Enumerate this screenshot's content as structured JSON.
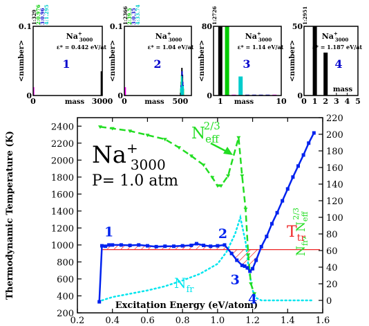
{
  "chart_data": [
    {
      "type": "bar",
      "panel_number": "1",
      "species_base": "Na",
      "species_sup": "+",
      "species_sub": "3000",
      "energy_label": "ε* = 0.442 eV/at",
      "ylabel": "<number>",
      "xlabel": "mass",
      "xlim": [
        0,
        3000
      ],
      "ylim": [
        0,
        0.1
      ],
      "xticks": [
        "0",
        "3000"
      ],
      "yticks": [
        "0",
        "0.1"
      ],
      "top_labels": [
        {
          "text": "1:329",
          "color": "#000000"
        },
        {
          "text": "2:0.976",
          "color": "#00cc00"
        },
        {
          "text": "3:0.96",
          "color": "#0000cc"
        },
        {
          "text": "4:1.295",
          "color": "#00cccc"
        }
      ],
      "series": [
        {
          "color": "#000000",
          "points": [
            [
              2960,
              0.035
            ]
          ]
        },
        {
          "color": "#ff00ff",
          "points": [
            [
              20,
              0.012
            ]
          ]
        }
      ]
    },
    {
      "type": "bar",
      "panel_number": "2",
      "species_base": "Na",
      "species_sup": "+",
      "species_sub": "3000",
      "energy_label": "ε* = 1.04 eV/at",
      "ylabel": "<number>",
      "xlabel": "mass",
      "xlim": [
        0,
        600
      ],
      "ylim": [
        0,
        0.1
      ],
      "xticks": [
        "0",
        "500"
      ],
      "yticks": [
        "0",
        "0.1"
      ],
      "top_labels": [
        {
          "text": "1:2366",
          "color": "#000000"
        },
        {
          "text": "2:39.5",
          "color": "#00cc00"
        },
        {
          "text": "3:0.35",
          "color": "#0000cc"
        },
        {
          "text": "4:33.74",
          "color": "#00cccc"
        }
      ],
      "series": [
        {
          "color": "#000000",
          "points": [
            [
              510,
              0.02
            ],
            [
              515,
              0.04
            ],
            [
              520,
              0.03
            ],
            [
              525,
              0.015
            ]
          ]
        },
        {
          "color": "#00cc00",
          "points": [
            [
              505,
              0.01
            ],
            [
              512,
              0.03
            ],
            [
              518,
              0.025
            ],
            [
              528,
              0.01
            ]
          ]
        },
        {
          "color": "#0000cc",
          "points": [
            [
              508,
              0.015
            ],
            [
              516,
              0.035
            ],
            [
              522,
              0.02
            ]
          ]
        },
        {
          "color": "#00cccc",
          "points": [
            [
              506,
              0.012
            ],
            [
              514,
              0.028
            ],
            [
              526,
              0.014
            ]
          ]
        },
        {
          "color": "#ff00ff",
          "points": [
            [
              8,
              0.012
            ]
          ]
        }
      ]
    },
    {
      "type": "bar",
      "panel_number": "3",
      "species_base": "Na",
      "species_sup": "+",
      "species_sub": "3000",
      "energy_label": "ε* = 1.14 eV/at",
      "ylabel": "<number>",
      "xlabel": "mass",
      "xlim": [
        0,
        10
      ],
      "ylim": [
        0,
        80
      ],
      "xticks": [
        "1",
        "10"
      ],
      "yticks": [
        "0",
        "80"
      ],
      "top_labels": [
        {
          "text": "1:2726",
          "color": "#000000"
        }
      ],
      "series": [
        {
          "color": "#000000",
          "points": [
            [
              1,
              80
            ]
          ]
        },
        {
          "color": "#00cc00",
          "points": [
            [
              2,
              80
            ]
          ]
        },
        {
          "color": "#00cccc",
          "points": [
            [
              4,
              22
            ]
          ]
        },
        {
          "color": "#0000cc",
          "points": [
            [
              5,
              1
            ],
            [
              6,
              1
            ],
            [
              7,
              1
            ],
            [
              8,
              1
            ]
          ]
        },
        {
          "color": "#ff00ff",
          "points": [
            [
              3,
              1
            ],
            [
              9,
              1
            ]
          ]
        }
      ]
    },
    {
      "type": "bar",
      "panel_number": "4",
      "species_base": "Na",
      "species_sup": "+",
      "species_sub": "3000",
      "energy_label": "ε* = 1.187 eV/at",
      "ylabel": "<number>",
      "xlabel": "mass",
      "xlim": [
        0,
        5
      ],
      "ylim": [
        0,
        50
      ],
      "xticks": [
        "0",
        "1",
        "2",
        "3",
        "4",
        "5"
      ],
      "yticks": [
        "0",
        "50"
      ],
      "top_labels": [
        {
          "text": "1:2951",
          "color": "#000000"
        }
      ],
      "series": [
        {
          "color": "#000000",
          "points": [
            [
              1,
              50
            ],
            [
              2,
              31
            ]
          ]
        }
      ]
    },
    {
      "type": "line",
      "title_base": "Na",
      "title_sup": "+",
      "title_sub": "3000",
      "pressure_label": "P= 1.0 atm",
      "xlabel": "Excitation Energy (eV/atom)",
      "ylabel": "Thermodynamic Temperature (K)",
      "ylabel_right": "Nfr, Neff^2/3",
      "xlim": [
        0.2,
        1.6
      ],
      "ylim": [
        200,
        2500
      ],
      "ylim_right": [
        -15,
        220
      ],
      "xticks": [
        "0.2",
        "0.4",
        "0.6",
        "0.8",
        "1.0",
        "1.2",
        "1.4",
        "1.6"
      ],
      "yticks": [
        "200",
        "400",
        "600",
        "800",
        "1000",
        "1200",
        "1400",
        "1600",
        "1800",
        "2000",
        "2200",
        "2400"
      ],
      "yticks_right": [
        "0",
        "20",
        "40",
        "60",
        "80",
        "100",
        "120",
        "140",
        "160",
        "180",
        "200",
        "220"
      ],
      "grid": false,
      "ttr_value": 945,
      "ttr_label_base": "T",
      "ttr_label_sub": "tr",
      "neff_label_base": "N",
      "neff_label_sub": "eff",
      "neff_label_sup": "2/3",
      "nfr_label_base": "N",
      "nfr_label_sub": "fr",
      "point_labels": [
        {
          "text": "1",
          "x": 0.38,
          "y": 1100,
          "color": "#0022ee"
        },
        {
          "text": "2",
          "x": 1.03,
          "y": 1080,
          "color": "#0022ee"
        },
        {
          "text": "3",
          "x": 1.1,
          "y": 540,
          "color": "#0022ee"
        },
        {
          "text": "4",
          "x": 1.2,
          "y": 310,
          "color": "#0022ee"
        }
      ],
      "series": [
        {
          "color": "#0022ee",
          "axis": "left",
          "x": [
            0.325,
            0.34,
            0.36,
            0.38,
            0.4,
            0.45,
            0.5,
            0.55,
            0.6,
            0.65,
            0.7,
            0.75,
            0.8,
            0.85,
            0.88,
            0.92,
            0.96,
            1.0,
            1.04,
            1.08,
            1.11,
            1.14,
            1.155,
            1.17,
            1.185,
            1.2,
            1.22,
            1.25,
            1.28,
            1.31,
            1.34,
            1.37,
            1.4,
            1.43,
            1.46,
            1.49,
            1.52,
            1.55
          ],
          "y": [
            330,
            990,
            985,
            1000,
            1000,
            1000,
            995,
            1000,
            990,
            980,
            985,
            985,
            990,
            995,
            1015,
            995,
            985,
            990,
            1000,
            900,
            820,
            760,
            750,
            730,
            690,
            720,
            820,
            980,
            1100,
            1250,
            1380,
            1520,
            1660,
            1800,
            1930,
            2060,
            2200,
            2320
          ]
        },
        {
          "color": "#22dd22",
          "axis": "right",
          "x": [
            0.33,
            0.4,
            0.5,
            0.6,
            0.7,
            0.78,
            0.85,
            0.92,
            0.97,
            1.0,
            1.02,
            1.06,
            1.12,
            1.14,
            1.16,
            1.175,
            1.19,
            1.21
          ],
          "y": [
            209,
            207,
            204,
            199,
            194,
            184,
            174,
            163,
            148,
            138,
            138,
            150,
            196,
            150,
            110,
            55,
            20,
            8
          ]
        },
        {
          "color": "#00e5ee",
          "axis": "right",
          "x": [
            0.34,
            0.4,
            0.5,
            0.6,
            0.7,
            0.8,
            0.9,
            1.0,
            1.05,
            1.1,
            1.13,
            1.16,
            1.18,
            1.2,
            1.22,
            1.25,
            1.3,
            1.4,
            1.5,
            1.55
          ],
          "y": [
            0,
            4,
            8,
            12,
            17,
            24,
            32,
            44,
            58,
            80,
            100,
            70,
            35,
            12,
            3,
            0,
            0,
            0,
            0,
            0
          ]
        }
      ]
    }
  ]
}
